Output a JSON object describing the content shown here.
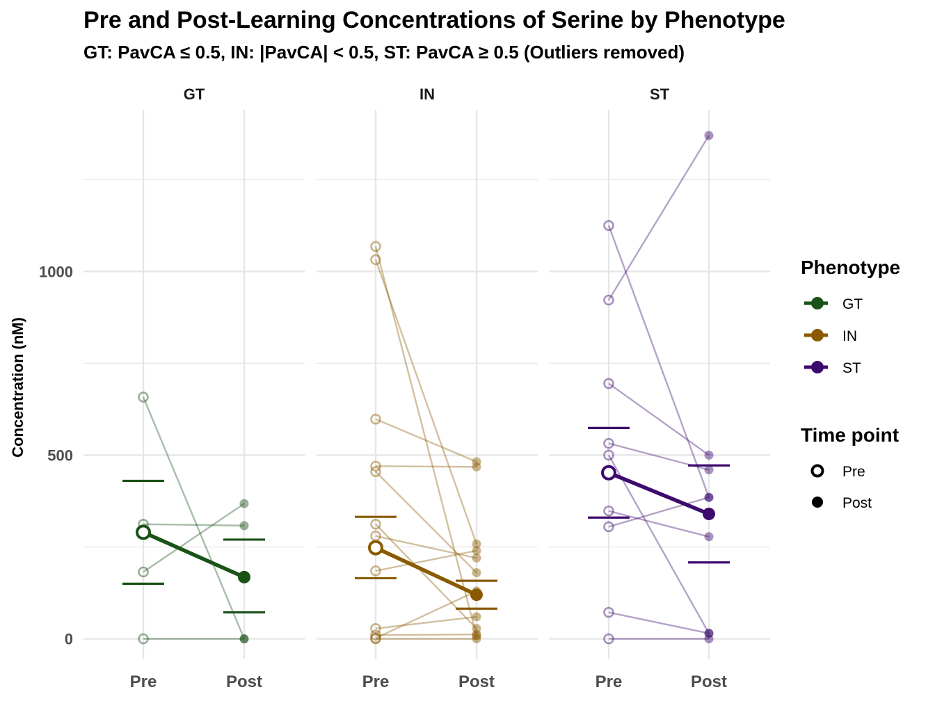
{
  "chart_data": {
    "type": "scatter",
    "title": "Pre and Post-Learning Concentrations of Serine by Phenotype",
    "subtitle": "GT: PavCA ≤ 0.5, IN: |PavCA| < 0.5, ST: PavCA ≥ 0.5 (Outliers removed)",
    "ylabel": "Concentration (nM)",
    "xlabel": "",
    "categories": [
      "Pre",
      "Post"
    ],
    "yticks": [
      0,
      500,
      1000
    ],
    "ylim": [
      -60,
      1440
    ],
    "grid": true,
    "legend_position": "right",
    "legend": {
      "phenotype_title": "Phenotype",
      "timepoint_title": "Time point",
      "phenotypes": [
        "GT",
        "IN",
        "ST"
      ],
      "timepoints": [
        "Pre",
        "Post"
      ]
    },
    "panels": [
      {
        "name": "GT",
        "color": "#1a5218",
        "pairs": [
          [
            658,
            0
          ],
          [
            312,
            308
          ],
          [
            182,
            368
          ],
          [
            0,
            0
          ]
        ],
        "mean": [
          290,
          168
        ],
        "error_bars": {
          "pre": [
            150,
            430
          ],
          "post": [
            72,
            270
          ]
        }
      },
      {
        "name": "IN",
        "color": "#8a5a00",
        "pairs": [
          [
            1068,
            8
          ],
          [
            1032,
            258
          ],
          [
            598,
            482
          ],
          [
            470,
            468
          ],
          [
            455,
            180
          ],
          [
            312,
            28
          ],
          [
            280,
            220
          ],
          [
            185,
            240
          ],
          [
            28,
            60
          ],
          [
            10,
            12
          ],
          [
            2,
            130
          ],
          [
            0,
            0
          ]
        ],
        "mean": [
          248,
          120
        ],
        "error_bars": {
          "pre": [
            165,
            332
          ],
          "post": [
            82,
            158
          ]
        }
      },
      {
        "name": "ST",
        "color": "#3d0a6e",
        "pairs": [
          [
            1125,
            385
          ],
          [
            922,
            1370
          ],
          [
            695,
            500
          ],
          [
            532,
            460
          ],
          [
            500,
            15
          ],
          [
            348,
            278
          ],
          [
            305,
            385
          ],
          [
            72,
            15
          ],
          [
            0,
            0
          ]
        ],
        "mean": [
          452,
          340
        ],
        "error_bars": {
          "pre": [
            330,
            574
          ],
          "post": [
            208,
            472
          ]
        }
      }
    ]
  },
  "colors": {
    "GT": "#1a5218",
    "IN": "#8a5a00",
    "ST": "#3d0a6e",
    "grid": "#e6e6e6",
    "tick_text": "#4d4d4d"
  }
}
